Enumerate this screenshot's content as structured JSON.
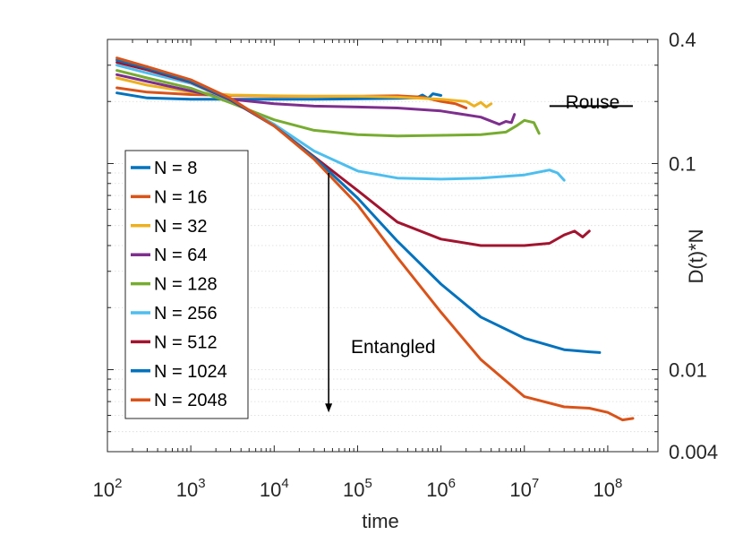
{
  "chart_data": {
    "type": "line",
    "title": "",
    "xlabel": "time",
    "ylabel": "D(t)*N",
    "xscale": "log",
    "yscale": "log",
    "xlim": [
      100,
      400000000
    ],
    "ylim": [
      0.004,
      0.4
    ],
    "x_ticks": [
      {
        "value": 100,
        "base": "10",
        "exp": "2"
      },
      {
        "value": 1000,
        "base": "10",
        "exp": "3"
      },
      {
        "value": 10000,
        "base": "10",
        "exp": "4"
      },
      {
        "value": 100000,
        "base": "10",
        "exp": "5"
      },
      {
        "value": 1000000,
        "base": "10",
        "exp": "6"
      },
      {
        "value": 10000000,
        "base": "10",
        "exp": "7"
      },
      {
        "value": 100000000,
        "base": "10",
        "exp": "8"
      }
    ],
    "y_ticks": [
      {
        "value": 0.4,
        "label": "0.4"
      },
      {
        "value": 0.1,
        "label": "0.1"
      },
      {
        "value": 0.01,
        "label": "0.01"
      },
      {
        "value": 0.004,
        "label": "0.004"
      }
    ],
    "y_axis_location": "right",
    "grid": "minor horizontal dotted",
    "legend_location": "left-center",
    "series": [
      {
        "name": "N = 8",
        "color": "#0072BD",
        "x": [
          130,
          300,
          1000,
          3000,
          10000,
          30000,
          100000,
          300000,
          500000,
          600000,
          700000,
          800000,
          1000000
        ],
        "y": [
          0.22,
          0.208,
          0.205,
          0.205,
          0.205,
          0.205,
          0.206,
          0.207,
          0.208,
          0.215,
          0.207,
          0.218,
          0.214
        ]
      },
      {
        "name": "N = 16",
        "color": "#D95319",
        "x": [
          130,
          300,
          1000,
          3000,
          10000,
          30000,
          100000,
          300000,
          600000,
          1000000,
          1500000,
          2000000
        ],
        "y": [
          0.233,
          0.222,
          0.216,
          0.214,
          0.212,
          0.212,
          0.212,
          0.213,
          0.21,
          0.2,
          0.195,
          0.186
        ]
      },
      {
        "name": "N = 32",
        "color": "#EDB120",
        "x": [
          130,
          300,
          1000,
          3000,
          10000,
          30000,
          100000,
          300000,
          1000000,
          2000000,
          2500000,
          3000000,
          3500000,
          4000000
        ],
        "y": [
          0.26,
          0.24,
          0.222,
          0.215,
          0.213,
          0.212,
          0.212,
          0.21,
          0.205,
          0.2,
          0.19,
          0.198,
          0.188,
          0.195
        ]
      },
      {
        "name": "N = 64",
        "color": "#7E2F8E",
        "x": [
          130,
          300,
          1000,
          3000,
          10000,
          30000,
          100000,
          300000,
          1000000,
          3000000,
          5000000,
          6000000,
          7000000,
          7600000
        ],
        "y": [
          0.27,
          0.25,
          0.225,
          0.205,
          0.195,
          0.19,
          0.188,
          0.186,
          0.18,
          0.168,
          0.155,
          0.16,
          0.158,
          0.173
        ]
      },
      {
        "name": "N = 128",
        "color": "#77AC30",
        "x": [
          130,
          300,
          1000,
          3000,
          10000,
          30000,
          100000,
          300000,
          1000000,
          3000000,
          6000000,
          8000000,
          10000000,
          13000000,
          15000000
        ],
        "y": [
          0.283,
          0.26,
          0.232,
          0.197,
          0.163,
          0.145,
          0.138,
          0.136,
          0.137,
          0.138,
          0.142,
          0.152,
          0.162,
          0.158,
          0.14
        ]
      },
      {
        "name": "N = 256",
        "color": "#4DBEEE",
        "x": [
          130,
          300,
          1000,
          3000,
          10000,
          30000,
          100000,
          300000,
          1000000,
          3000000,
          10000000,
          20000000,
          25000000,
          30000000
        ],
        "y": [
          0.3,
          0.275,
          0.245,
          0.202,
          0.155,
          0.115,
          0.092,
          0.085,
          0.084,
          0.085,
          0.088,
          0.093,
          0.09,
          0.083
        ]
      },
      {
        "name": "N = 512",
        "color": "#A2142F",
        "x": [
          130,
          300,
          1000,
          3000,
          10000,
          30000,
          100000,
          300000,
          1000000,
          3000000,
          10000000,
          20000000,
          30000000,
          40000000,
          50000000,
          60000000
        ],
        "y": [
          0.31,
          0.285,
          0.248,
          0.203,
          0.152,
          0.108,
          0.074,
          0.052,
          0.043,
          0.04,
          0.04,
          0.041,
          0.045,
          0.047,
          0.044,
          0.047
        ]
      },
      {
        "name": "N = 1024",
        "color": "#0072BD",
        "x": [
          130,
          300,
          1000,
          3000,
          10000,
          30000,
          100000,
          300000,
          1000000,
          3000000,
          10000000,
          30000000,
          60000000,
          80000000
        ],
        "y": [
          0.318,
          0.29,
          0.25,
          0.205,
          0.152,
          0.107,
          0.068,
          0.042,
          0.026,
          0.018,
          0.0142,
          0.0125,
          0.0122,
          0.0121
        ]
      },
      {
        "name": "N = 2048",
        "color": "#D95319",
        "x": [
          130,
          300,
          1000,
          3000,
          10000,
          30000,
          100000,
          300000,
          1000000,
          3000000,
          10000000,
          30000000,
          60000000,
          100000000,
          150000000,
          200000000
        ],
        "y": [
          0.325,
          0.295,
          0.255,
          0.207,
          0.152,
          0.105,
          0.063,
          0.035,
          0.019,
          0.0112,
          0.0074,
          0.0066,
          0.0065,
          0.0062,
          0.0057,
          0.0058
        ]
      }
    ],
    "annotations": [
      {
        "text": "Rouse",
        "type": "reference-segment",
        "x_range": [
          20000000,
          200000000
        ],
        "y": 0.19
      },
      {
        "text": "Entangled",
        "type": "arrow",
        "from": [
          45000,
          0.09
        ],
        "to": [
          45000,
          0.0062
        ]
      }
    ]
  }
}
